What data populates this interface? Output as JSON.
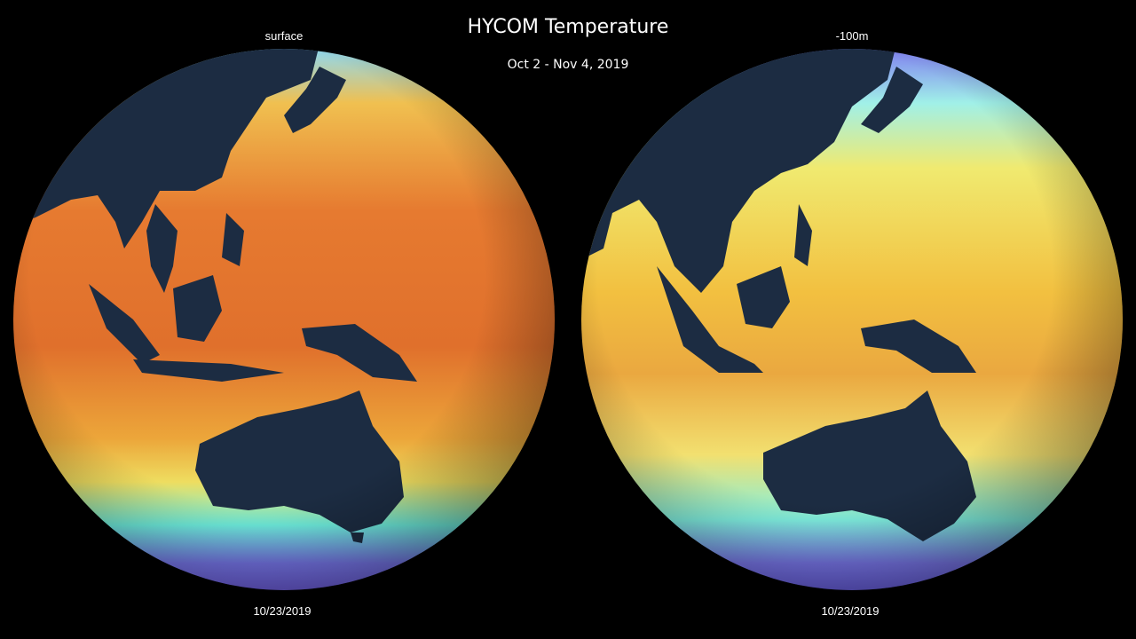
{
  "header": {
    "title": "HYCOM Temperature",
    "subtitle": "Oct 2 - Nov 4, 2019"
  },
  "globes": [
    {
      "label": "surface",
      "date": "10/23/2019"
    },
    {
      "label": "-100m",
      "date": "10/23/2019"
    }
  ]
}
